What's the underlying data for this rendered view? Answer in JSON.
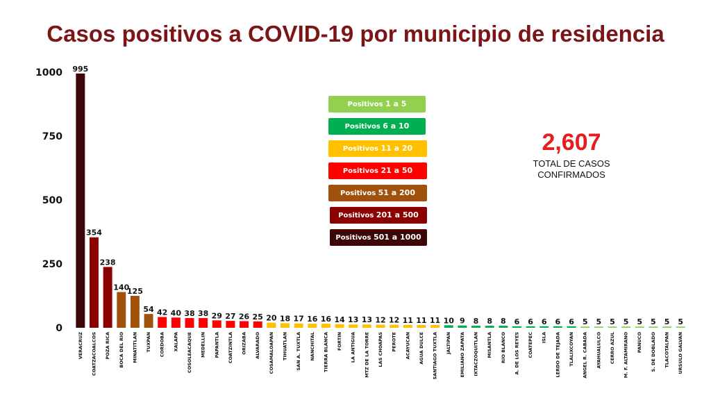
{
  "title": "Casos positivos a COVID-19  por municipio de residencia",
  "total": {
    "value": "2,607",
    "label_line1": "TOTAL DE CASOS",
    "label_line2": "CONFIRMADOS"
  },
  "legend": [
    {
      "prefix": "Positivos",
      "range": "1 a 5",
      "color": "#92d050"
    },
    {
      "prefix": "Positivos",
      "range": "6 a 10",
      "color": "#00b050"
    },
    {
      "prefix": "Positivos",
      "range": "11 a 20",
      "color": "#ffc000"
    },
    {
      "prefix": "Positivos",
      "range": "21 a 50",
      "color": "#ff0000"
    },
    {
      "prefix": "Positivos",
      "range": "51 a 200",
      "color": "#a0520d"
    },
    {
      "prefix": "Positivos",
      "range": "201 a 500",
      "color": "#8b0000"
    },
    {
      "prefix": "Positivos",
      "range": "501 a 1000",
      "color": "#3d0707"
    }
  ],
  "chart_data": {
    "type": "bar",
    "title": "Casos positivos a COVID-19  por municipio de residencia",
    "xlabel": "",
    "ylabel": "",
    "ylim": [
      0,
      1000
    ],
    "yticks": [
      0,
      250,
      500,
      750,
      1000
    ],
    "grid": false,
    "legend_position": "top-center",
    "categories": [
      "VERACRUZ",
      "COATZACOALCOS",
      "POZA RICA",
      "BOCA DEL RIO",
      "MINATITLAN",
      "TUXPAN",
      "CORDOBA",
      "XALAPA",
      "COSOLEACAQUE",
      "MEDELLIN",
      "PAPANTLA",
      "COATZINTLA",
      "ORIZABA",
      "ALVARADO",
      "COSAMALOAPAN",
      "TIHUATLAN",
      "SAN A. TUXTLA",
      "NANCHITAL",
      "TIERRA BLANCA",
      "FORTIN",
      "LA ANTIGUA",
      "MTZ DE LA TORRE",
      "LAS CHOAPAS",
      "PEROTE",
      "ACAYUCAN",
      "AGUA DULCE",
      "SANTIAGO TUXTLA",
      "JALTIPAN",
      "EMILIANO ZAPATA",
      "IXTACZOQUITLAN",
      "MISANTLA",
      "RIO BLANCO",
      "A. DE LOS REYES",
      "COATEPEC",
      "ISLA",
      "LERDO DE TEJADA",
      "TLALIXCOYAN",
      "ANGEL R. CABADA",
      "AYAHUALULCO",
      "CERRO AZUL",
      "M. F. ALTAMIRANO",
      "PANUCO",
      "S. DE DOBLADO",
      "TLACOTALPAN",
      "URSULO GALVAN"
    ],
    "values": [
      995,
      354,
      238,
      140,
      125,
      54,
      42,
      40,
      38,
      38,
      29,
      27,
      26,
      25,
      20,
      18,
      17,
      16,
      16,
      14,
      13,
      13,
      12,
      12,
      11,
      11,
      11,
      10,
      9,
      8,
      8,
      8,
      6,
      6,
      6,
      6,
      6,
      5,
      5,
      5,
      5,
      5,
      5,
      5,
      5
    ],
    "colors": {
      "r1": "#92d050",
      "r2": "#00b050",
      "r3": "#ffc000",
      "r4": "#ff0000",
      "r5": "#a0520d",
      "r6": "#8b0000",
      "r7": "#3d0707"
    }
  }
}
